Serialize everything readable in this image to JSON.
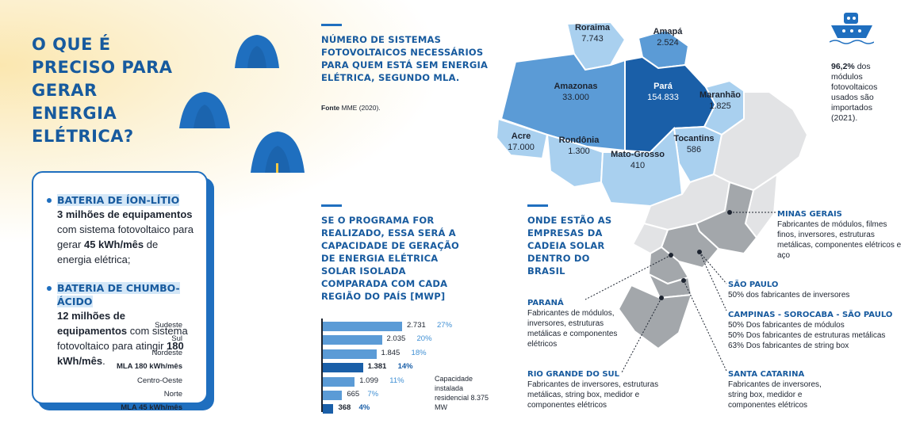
{
  "title": "O QUE É PRECISO PARA GERAR ENERGIA ELÉTRICA?",
  "card": {
    "item1_title": "BATERIA DE ÍON-LÍTIO",
    "item1_bold_a": "3 milhões de equipamentos",
    "item1_text_a": " com sistema fotovoltaico para gerar ",
    "item1_bold_b": "45 kWh/mês",
    "item1_text_b": " de energia elétrica;",
    "item2_title": "BATERIA DE CHUMBO-ÁCIDO",
    "item2_bold_a": "12 milhões de equipamentos",
    "item2_text_a": " com sistema fotovoltaico para atingir ",
    "item2_bold_b": "180 kWh/mês",
    "item2_text_b": "."
  },
  "map_section": {
    "heading": "NÚMERO DE SISTEMAS FOTOVOLTAICOS NECESSÁRIOS PARA QUEM ESTÁ SEM ENERGIA ELÉTRICA, SEGUNDO MLA.",
    "source_label": "Fonte",
    "source_text": "MME (2020)."
  },
  "states": [
    {
      "name": "Roraima",
      "value": "7.743"
    },
    {
      "name": "Amapá",
      "value": "2.524"
    },
    {
      "name": "Amazonas",
      "value": "33.000"
    },
    {
      "name": "Pará",
      "value": "154.833"
    },
    {
      "name": "Maranhão",
      "value": "1.825"
    },
    {
      "name": "Acre",
      "value": "17.000"
    },
    {
      "name": "Rondônia",
      "value": "1.300"
    },
    {
      "name": "Tocantins",
      "value": "586"
    },
    {
      "name": "Mato-Grosso",
      "value": "410"
    }
  ],
  "import_note": {
    "value": "96,2%",
    "text": "dos módulos fotovoltaicos usados são importados (2021)."
  },
  "chart_section": {
    "heading": "SE O PROGRAMA FOR REALIZADO, ESSA SERÁ A CAPACIDADE DE GERAÇÃO DE ENERGIA ELÉTRICA SOLAR ISOLADA COMPARADA COM CADA REGIÃO DO PAÍS [MWP]",
    "note": "Capacidade instalada residencial 8.375 MW"
  },
  "chart_data": {
    "type": "bar",
    "orientation": "horizontal",
    "categories": [
      "Sudeste",
      "Sul",
      "Nordeste",
      "MLA 180 kWh/mês",
      "Centro-Oeste",
      "Norte",
      "MLA 45 kWh/mês"
    ],
    "values": [
      2731,
      2035,
      1845,
      1381,
      1099,
      665,
      368
    ],
    "value_labels": [
      "2.731",
      "2.035",
      "1.845",
      "1.381",
      "1.099",
      "665",
      "368"
    ],
    "percent_labels": [
      "27%",
      "20%",
      "18%",
      "14%",
      "11%",
      "7%",
      "4%"
    ],
    "highlighted": [
      false,
      false,
      false,
      true,
      false,
      false,
      true
    ],
    "colors": {
      "regular": "#5b9bd6",
      "highlight": "#1a5fa8"
    }
  },
  "companies_section": {
    "heading": "ONDE ESTÃO AS EMPRESAS DA CADEIA SOLAR DENTRO DO BRASIL"
  },
  "callouts": [
    {
      "title": "MINAS GERAIS",
      "text": "Fabricantes de módulos, filmes finos, inversores, estruturas metálicas, componentes elétricos e aço"
    },
    {
      "title": "SÃO PAULO",
      "text": "50% dos fabricantes de inversores"
    },
    {
      "title": "CAMPINAS - SOROCABA - SÃO PAULO",
      "text": "50% Dos fabricantes de módulos\n50% Dos fabricantes de estruturas metálicas\n63% Dos fabricantes de string box"
    },
    {
      "title": "SANTA CATARINA",
      "text": "Fabricantes de inversores, string box, medidor e componentes elétricos"
    },
    {
      "title": "PARANÁ",
      "text": "Fabricantes de módulos, inversores, estruturas metálicas e componentes elétricos"
    },
    {
      "title": "RIO GRANDE DO SUL",
      "text": "Fabricantes de inversores, estruturas metálicas, string box, medidor e componentes elétricos"
    }
  ],
  "colors": {
    "brand_blue": "#175a9e",
    "accent_blue": "#1f6fbf",
    "light_blue": "#5b9bd6",
    "pale_blue": "#a9d0ef",
    "gray_state": "#a3a7ab",
    "light_gray": "#e2e3e5"
  }
}
